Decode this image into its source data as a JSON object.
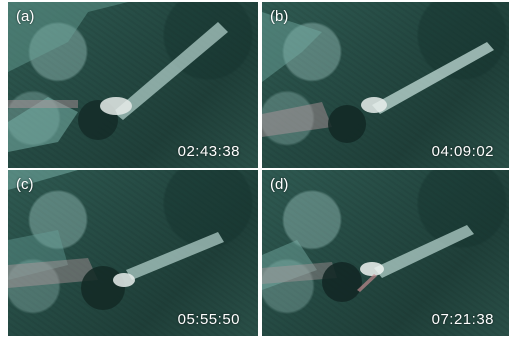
{
  "panels": [
    {
      "label": "(a)",
      "time": "02:43:38"
    },
    {
      "label": "(b)",
      "time": "04:09:02"
    },
    {
      "label": "(c)",
      "time": "05:55:50"
    },
    {
      "label": "(d)",
      "time": "07:21:38"
    }
  ]
}
